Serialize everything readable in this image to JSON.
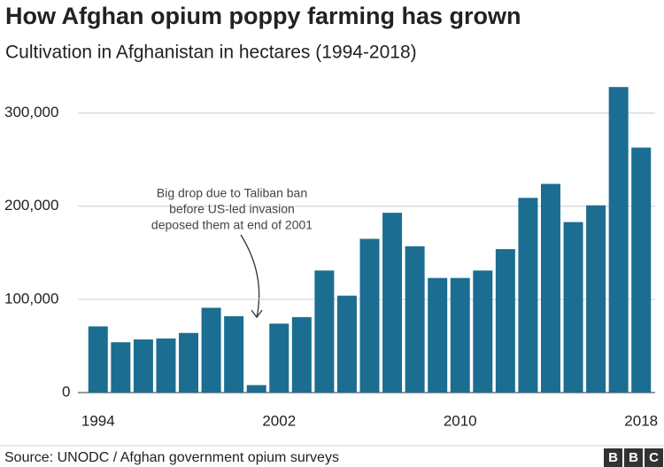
{
  "chart_data": {
    "type": "bar",
    "title": "How Afghan opium poppy farming has grown",
    "subtitle": "Cultivation in Afghanistan in hectares (1994-2018)",
    "categories": [
      "1994",
      null,
      null,
      null,
      null,
      null,
      null,
      null,
      "2002",
      null,
      null,
      null,
      null,
      null,
      null,
      null,
      "2010",
      null,
      null,
      null,
      null,
      null,
      null,
      null,
      "2018"
    ],
    "values": [
      71000,
      54000,
      57000,
      58000,
      64000,
      91000,
      82000,
      8000,
      74000,
      81000,
      131000,
      104000,
      165000,
      193000,
      157000,
      123000,
      123000,
      131000,
      154000,
      209000,
      224000,
      183000,
      201000,
      328000,
      263000
    ],
    "color": "#1b6d91",
    "ylim": [
      0,
      332000
    ],
    "yticks": [
      0,
      {
        "value": 100000,
        "label": "100,000"
      },
      {
        "value": 200000,
        "label": "200,000"
      },
      {
        "value": 300000,
        "label": "300,000"
      }
    ],
    "grid": true,
    "annotation": [
      "Big drop due to Taliban ban",
      "before US-led invasion",
      "deposed them at end of 2001"
    ],
    "source": "Source: UNODC / Afghan government opium surveys",
    "logo": [
      "B",
      "B",
      "C"
    ]
  }
}
